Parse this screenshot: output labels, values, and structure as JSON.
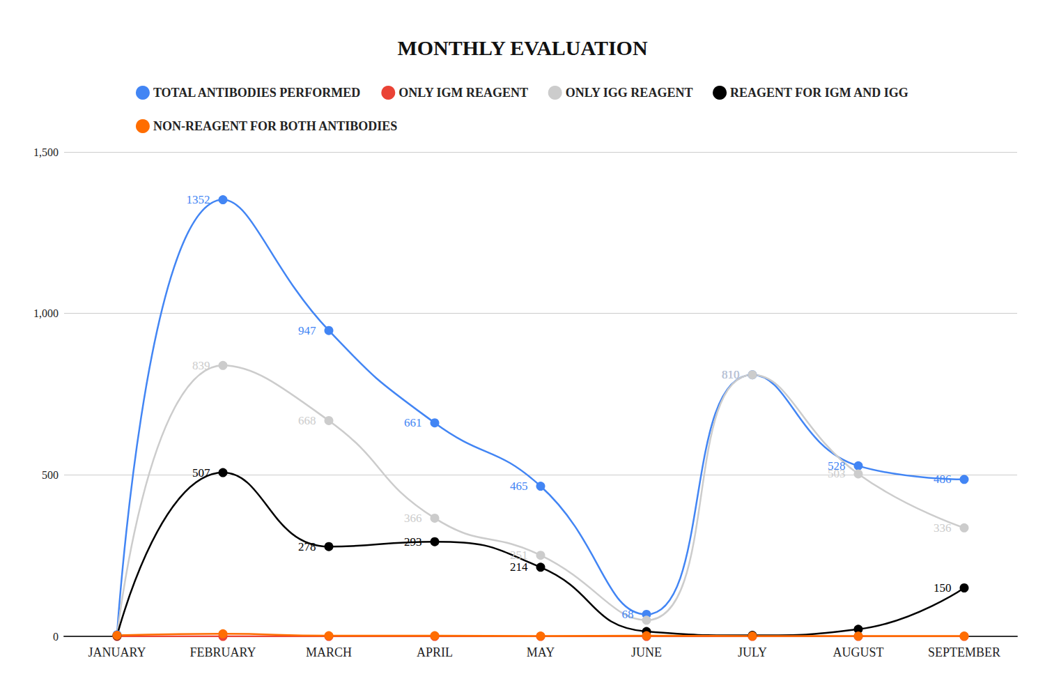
{
  "chart_data": {
    "type": "line",
    "title": "MONTHLY EVALUATION",
    "categories": [
      "JANUARY",
      "FEBRUARY",
      "MARCH",
      "APRIL",
      "MAY",
      "JUNE",
      "JULY",
      "AUGUST",
      "SEPTEMBER"
    ],
    "ylim": [
      0,
      1500
    ],
    "yticks": [
      0,
      500,
      1000,
      1500
    ],
    "grid": true,
    "legend": "top",
    "data_labels": true,
    "marker": "circle",
    "line_style": "solid",
    "series": [
      {
        "name": "TOTAL ANTIBODIES PERFORMED",
        "color": "#4285f4",
        "values": [
          5,
          1352,
          947,
          661,
          465,
          68,
          810,
          528,
          486
        ],
        "value_labels": [
          null,
          "1352",
          "947",
          "661",
          "465",
          "68",
          "810",
          "528",
          "486"
        ]
      },
      {
        "name": "ONLY IGM REAGENT",
        "color": "#ea4335",
        "values": [
          0,
          0,
          0,
          0,
          0,
          0,
          0,
          0,
          0
        ],
        "value_labels": [
          null,
          null,
          null,
          null,
          null,
          null,
          null,
          null,
          null
        ]
      },
      {
        "name": "ONLY IGG REAGENT",
        "color": "#cccccc",
        "values": [
          3,
          839,
          668,
          366,
          251,
          50,
          810,
          503,
          336
        ],
        "value_labels": [
          null,
          "839",
          "668",
          "366",
          "251",
          null,
          "810",
          "503",
          "336"
        ]
      },
      {
        "name": "REAGENT FOR IGM AND IGG",
        "color": "#000000",
        "values": [
          2,
          507,
          278,
          293,
          214,
          15,
          3,
          22,
          150
        ],
        "value_labels": [
          null,
          "507",
          "278",
          "293",
          "214",
          null,
          null,
          null,
          "150"
        ]
      },
      {
        "name": "NON-REAGENT FOR BOTH ANTIBODIES",
        "color": "#ff6d01",
        "values": [
          3,
          8,
          2,
          2,
          1,
          2,
          1,
          1,
          1
        ],
        "value_labels": [
          null,
          null,
          null,
          null,
          null,
          null,
          null,
          null,
          null
        ]
      }
    ]
  }
}
